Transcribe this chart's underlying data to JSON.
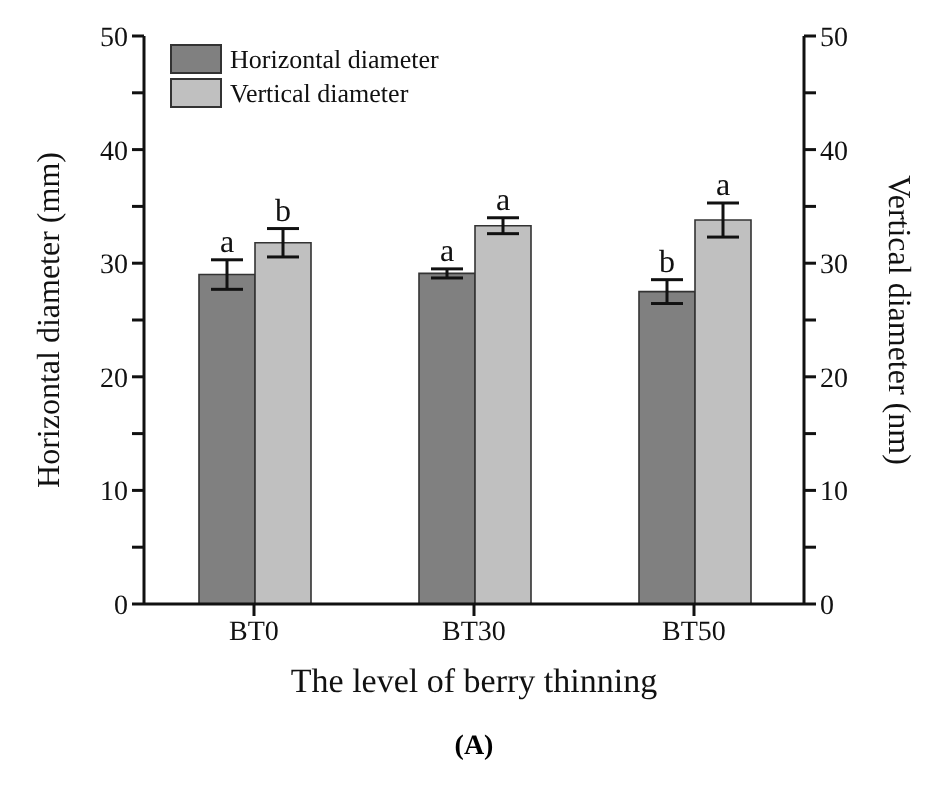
{
  "chart_data": {
    "type": "bar",
    "categories": [
      "BT0",
      "BT30",
      "BT50"
    ],
    "series": [
      {
        "name": "Horizontal diameter",
        "color": "#808080",
        "values": [
          29.0,
          29.1,
          27.5
        ],
        "errors": [
          1.3,
          0.4,
          1.05
        ]
      },
      {
        "name": "Vertical diameter",
        "color": "#c0c0c0",
        "values": [
          31.8,
          33.3,
          33.8
        ],
        "errors": [
          1.25,
          0.7,
          1.5
        ],
        "axis": "y2"
      }
    ],
    "xlabel": "The level of berry thinning",
    "ylabel": "Horizontal diameter (mm)",
    "y2label": "Vertical diameter (nm)",
    "ylim": [
      0,
      50
    ],
    "yticks": [
      0,
      {
        "value": 5,
        "label": null
      },
      10,
      {
        "value": 15,
        "label": null
      },
      20,
      {
        "value": 25,
        "label": null
      },
      30,
      {
        "value": 35,
        "label": null
      },
      40,
      {
        "value": 45,
        "label": null
      },
      50
    ],
    "y2lim": [
      0,
      50
    ],
    "y2ticks": [
      0,
      {
        "value": 5,
        "label": null
      },
      10,
      {
        "value": 15,
        "label": null
      },
      20,
      {
        "value": 25,
        "label": null
      },
      30,
      {
        "value": 35,
        "label": null
      },
      40,
      {
        "value": 45,
        "label": null
      },
      50
    ],
    "legend": "top left",
    "grid": false,
    "annotations": [
      {
        "text": "a",
        "x": "BT0",
        "y": 29.0
      },
      {
        "text": "b",
        "x": "BT0",
        "y": 31.8
      },
      {
        "text": "a",
        "x": "BT30",
        "y": 29.1
      },
      {
        "text": "a",
        "x": "BT30",
        "y": 33.3
      },
      {
        "text": "b",
        "x": "BT50",
        "y": 27.5
      },
      {
        "text": "a",
        "x": "BT50",
        "y": 33.8
      },
      "(A)"
    ]
  }
}
